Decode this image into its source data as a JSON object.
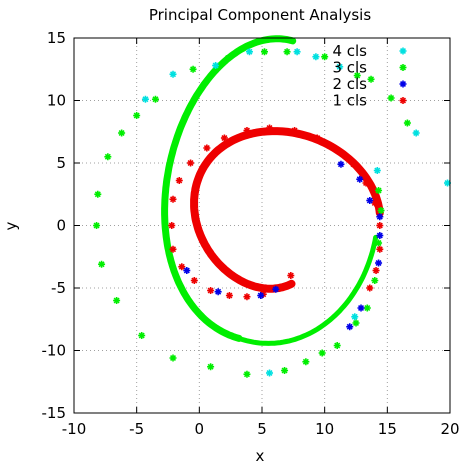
{
  "chart_data": {
    "type": "scatter",
    "title": "Principal Component Analysis",
    "xlabel": "x",
    "ylabel": "y",
    "xlim": [
      -10,
      20
    ],
    "ylim": [
      -15,
      15
    ],
    "x_ticks": [
      "-10",
      "-5",
      "0",
      "5",
      "10",
      "15",
      "20"
    ],
    "y_ticks": [
      "-15",
      "-10",
      "-5",
      "0",
      "5",
      "10",
      "15"
    ],
    "grid": true,
    "legend_position": "top-right",
    "series": [
      {
        "name": "4 cls",
        "color": "#00e0e0",
        "marker": "asterisk",
        "points": [
          [
            -2.1,
            12.1
          ],
          [
            1.3,
            12.8
          ],
          [
            4.0,
            13.9
          ],
          [
            7.8,
            13.9
          ],
          [
            9.3,
            13.5
          ],
          [
            11.2,
            12.7
          ],
          [
            17.3,
            7.4
          ],
          [
            19.8,
            3.4
          ],
          [
            14.2,
            4.4
          ],
          [
            5.6,
            -11.8
          ],
          [
            -4.3,
            10.1
          ],
          [
            12.4,
            -7.3
          ]
        ]
      },
      {
        "name": "3 cls",
        "color": "#00ee00",
        "marker": "asterisk",
        "points": [
          [
            -8.2,
            0.0
          ],
          [
            -8.1,
            2.5
          ],
          [
            -7.8,
            -3.1
          ],
          [
            -7.3,
            5.5
          ],
          [
            -6.6,
            -6.0
          ],
          [
            -6.2,
            7.4
          ],
          [
            -5.0,
            8.8
          ],
          [
            -4.6,
            -8.8
          ],
          [
            -3.5,
            10.1
          ],
          [
            -2.1,
            -10.6
          ],
          [
            -0.5,
            12.5
          ],
          [
            0.9,
            -11.3
          ],
          [
            2.3,
            13.4
          ],
          [
            3.8,
            -11.9
          ],
          [
            5.2,
            13.9
          ],
          [
            6.8,
            -11.6
          ],
          [
            7.0,
            13.9
          ],
          [
            8.5,
            -10.9
          ],
          [
            10.0,
            13.5
          ],
          [
            9.8,
            -10.2
          ],
          [
            11.0,
            -9.6
          ],
          [
            12.6,
            12.0
          ],
          [
            12.5,
            -7.8
          ],
          [
            13.4,
            -6.6
          ],
          [
            13.7,
            11.7
          ],
          [
            14.0,
            -4.4
          ],
          [
            15.3,
            10.2
          ],
          [
            16.6,
            8.2
          ],
          [
            14.3,
            -1.4
          ],
          [
            14.5,
            1.2
          ],
          [
            14.3,
            2.8
          ]
        ]
      },
      {
        "name": "2 cls",
        "color": "#0000e8",
        "marker": "asterisk",
        "points": [
          [
            4.9,
            -5.6
          ],
          [
            6.1,
            -5.1
          ],
          [
            11.3,
            4.9
          ],
          [
            12.8,
            3.7
          ],
          [
            13.6,
            2.0
          ],
          [
            14.4,
            0.7
          ],
          [
            14.4,
            -0.8
          ],
          [
            14.3,
            -3.0
          ],
          [
            12.0,
            -8.1
          ],
          [
            12.9,
            -6.6
          ],
          [
            -1.0,
            -3.6
          ],
          [
            1.5,
            -5.3
          ]
        ]
      },
      {
        "name": "1 cls",
        "color": "#ee0000",
        "marker": "asterisk",
        "points": [
          [
            -2.2,
            0.0
          ],
          [
            -2.1,
            2.1
          ],
          [
            -1.6,
            3.6
          ],
          [
            -0.7,
            5.0
          ],
          [
            0.6,
            6.2
          ],
          [
            2.0,
            7.0
          ],
          [
            3.8,
            7.6
          ],
          [
            5.6,
            7.8
          ],
          [
            7.6,
            7.6
          ],
          [
            9.4,
            7.0
          ],
          [
            10.9,
            6.1
          ],
          [
            12.3,
            4.9
          ],
          [
            13.3,
            3.4
          ],
          [
            14.0,
            1.8
          ],
          [
            14.4,
            0.0
          ],
          [
            14.4,
            -1.9
          ],
          [
            14.1,
            -3.6
          ],
          [
            -2.1,
            -1.9
          ],
          [
            -1.4,
            -3.3
          ],
          [
            -0.4,
            -4.4
          ],
          [
            0.9,
            -5.2
          ],
          [
            2.4,
            -5.6
          ],
          [
            3.8,
            -5.7
          ],
          [
            5.1,
            -5.5
          ],
          [
            6.3,
            -5.0
          ],
          [
            7.3,
            -4.0
          ],
          [
            13.6,
            -5.0
          ]
        ]
      }
    ]
  }
}
